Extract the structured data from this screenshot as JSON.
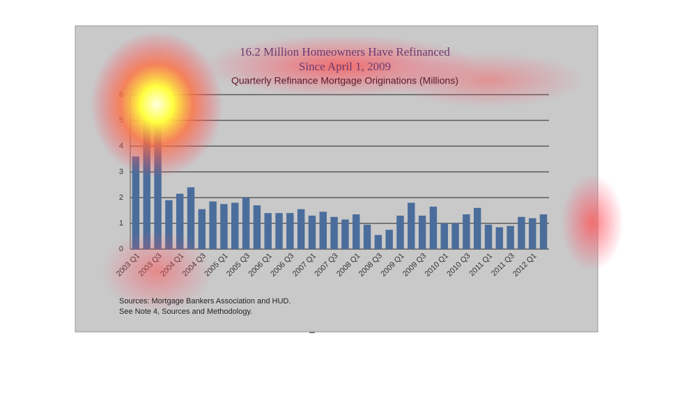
{
  "chart_data": {
    "type": "bar",
    "title_lines": [
      "16.2 Million Homeowners Have Refinanced",
      "Since April 1, 2009"
    ],
    "subtitle": "Quarterly Refinance Mortgage Originations (Millions)",
    "categories": [
      "2003 Q1",
      null,
      "2003 Q3",
      null,
      "2004 Q1",
      null,
      "2004 Q3",
      null,
      "2005 Q1",
      null,
      "2005 Q3",
      null,
      "2006 Q1",
      null,
      "2006 Q3",
      null,
      "2007 Q1",
      null,
      "2007 Q3",
      null,
      "2008 Q1",
      null,
      "2008 Q3",
      null,
      "2009 Q1",
      null,
      "2009 Q3",
      null,
      "2010 Q1",
      null,
      "2010 Q3",
      null,
      "2011 Q1",
      null,
      "2011 Q3",
      null,
      "2012 Q1",
      null
    ],
    "values": [
      3.6,
      5.2,
      4.9,
      1.9,
      2.15,
      2.4,
      1.55,
      1.85,
      1.75,
      1.8,
      2.0,
      1.7,
      1.4,
      1.4,
      1.4,
      1.55,
      1.3,
      1.45,
      1.25,
      1.15,
      1.35,
      0.95,
      0.55,
      0.75,
      1.3,
      1.8,
      1.3,
      1.65,
      1.0,
      1.0,
      1.35,
      1.6,
      0.95,
      0.85,
      0.9,
      1.25,
      1.2,
      1.35
    ],
    "color": "#4b6d9b",
    "ylim": [
      0,
      6
    ],
    "yticks": [
      0,
      1,
      2,
      3,
      4,
      5,
      6
    ],
    "grid": true,
    "annotations": [
      "Sources:  Mortgage Bankers Association and HUD.",
      "See Note 4, Sources and Methodology."
    ]
  }
}
